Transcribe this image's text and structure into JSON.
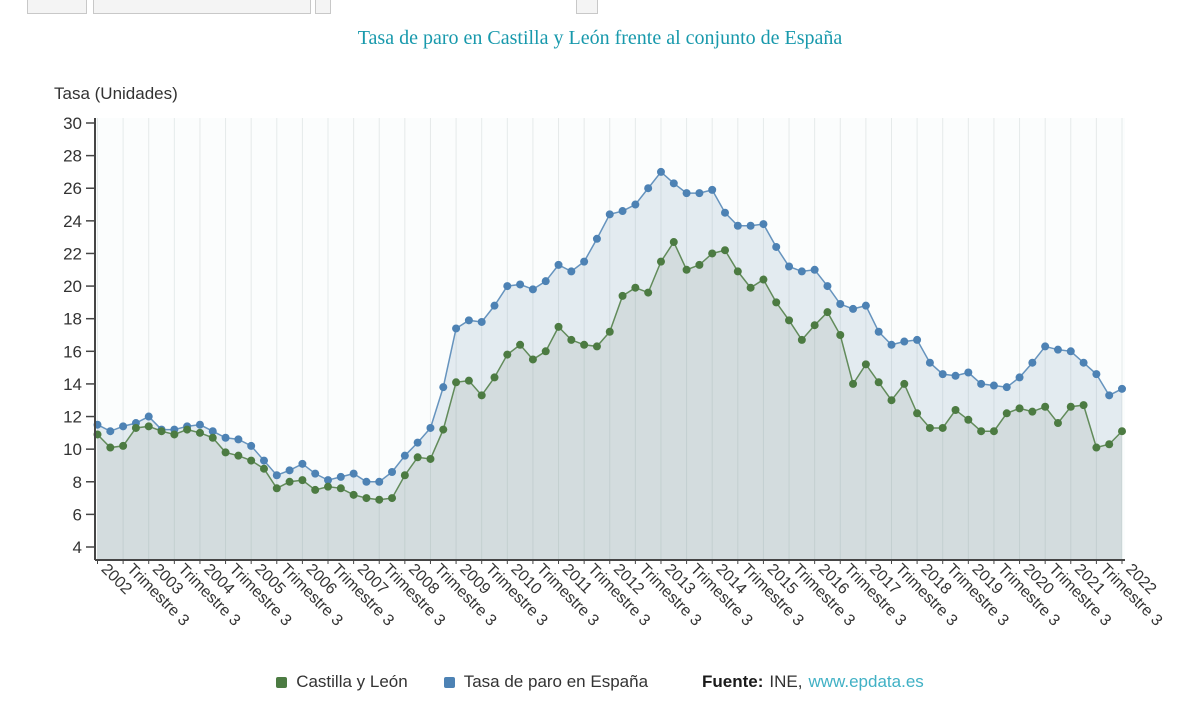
{
  "header": {
    "title": "Tasa de paro en Castilla y León frente al conjunto de España"
  },
  "axis": {
    "y_title": "Tasa (Unidades)"
  },
  "legend": [
    {
      "label": "Castilla y León",
      "color": "#4c7b42"
    },
    {
      "label": "Tasa de paro en España",
      "color": "#4d82b4"
    }
  ],
  "source": {
    "label": "Fuente:",
    "agency": "INE,",
    "link": "www.epdata.es"
  },
  "chart_data": {
    "type": "line",
    "title": "Tasa de paro en Castilla y León frente al conjunto de España",
    "ylabel": "Tasa (Unidades)",
    "ylim": [
      4,
      30
    ],
    "y_ticks": [
      4,
      6,
      8,
      10,
      12,
      14,
      16,
      18,
      20,
      22,
      24,
      26,
      28,
      30
    ],
    "x_description": "Trimestres desde 2002 T1 hasta 2022 T1, un punto por trimestre, etiqueta cada dos puntos",
    "x_tick_labels": [
      "2002",
      "Trimestre 3",
      "2003",
      "Trimestre 3",
      "2004",
      "Trimestre 3",
      "2005",
      "Trimestre 3",
      "2006",
      "Trimestre 3",
      "2007",
      "Trimestre 3",
      "2008",
      "Trimestre 3",
      "2009",
      "Trimestre 3",
      "2010",
      "Trimestre 3",
      "2011",
      "Trimestre 3",
      "2012",
      "Trimestre 3",
      "2013",
      "Trimestre 3",
      "2014",
      "Trimestre 3",
      "2015",
      "Trimestre 3",
      "2016",
      "Trimestre 3",
      "2017",
      "Trimestre 3",
      "2018",
      "Trimestre 3",
      "2019",
      "Trimestre 3",
      "2020",
      "Trimestre 3",
      "2021",
      "Trimestre 3",
      "2022"
    ],
    "grid": "vertical",
    "legend_position": "bottom",
    "series": [
      {
        "name": "Castilla y León",
        "color": "#4c7b42",
        "fill": "rgba(112,138,116,0.14)",
        "values": [
          10.9,
          10.1,
          10.2,
          11.3,
          11.4,
          11.1,
          10.9,
          11.2,
          11.0,
          10.7,
          9.8,
          9.6,
          9.3,
          8.8,
          7.6,
          8.0,
          8.1,
          7.5,
          7.7,
          7.6,
          7.2,
          7.0,
          6.9,
          7.0,
          8.4,
          9.5,
          9.4,
          11.2,
          14.1,
          14.2,
          13.3,
          14.4,
          15.8,
          16.4,
          15.5,
          16.0,
          17.5,
          16.7,
          16.4,
          16.3,
          17.2,
          19.4,
          19.9,
          19.6,
          21.5,
          22.7,
          21.0,
          21.3,
          22.0,
          22.2,
          20.9,
          19.9,
          20.4,
          19.0,
          17.9,
          16.7,
          17.6,
          18.4,
          17.0,
          14.0,
          15.2,
          14.1,
          13.0,
          14.0,
          12.2,
          11.3,
          11.3,
          12.4,
          11.8,
          11.1,
          11.1,
          12.2,
          12.5,
          12.3,
          12.6,
          11.6,
          12.6,
          12.7,
          10.1,
          10.3,
          11.1
        ]
      },
      {
        "name": "Tasa de paro en España",
        "color": "#4d82b4",
        "fill": "rgba(104,141,176,0.16)",
        "values": [
          11.5,
          11.1,
          11.4,
          11.6,
          12.0,
          11.2,
          11.2,
          11.4,
          11.5,
          11.1,
          10.7,
          10.6,
          10.2,
          9.3,
          8.4,
          8.7,
          9.1,
          8.5,
          8.1,
          8.3,
          8.5,
          8.0,
          8.0,
          8.6,
          9.6,
          10.4,
          11.3,
          13.8,
          17.4,
          17.9,
          17.8,
          18.8,
          20.0,
          20.1,
          19.8,
          20.3,
          21.3,
          20.9,
          21.5,
          22.9,
          24.4,
          24.6,
          25.0,
          26.0,
          27.0,
          26.3,
          25.7,
          25.7,
          25.9,
          24.5,
          23.7,
          23.7,
          23.8,
          22.4,
          21.2,
          20.9,
          21.0,
          20.0,
          18.9,
          18.6,
          18.8,
          17.2,
          16.4,
          16.6,
          16.7,
          15.3,
          14.6,
          14.5,
          14.7,
          14.0,
          13.9,
          13.8,
          14.4,
          15.3,
          16.3,
          16.1,
          16.0,
          15.3,
          14.6,
          13.3,
          13.7
        ]
      }
    ]
  }
}
